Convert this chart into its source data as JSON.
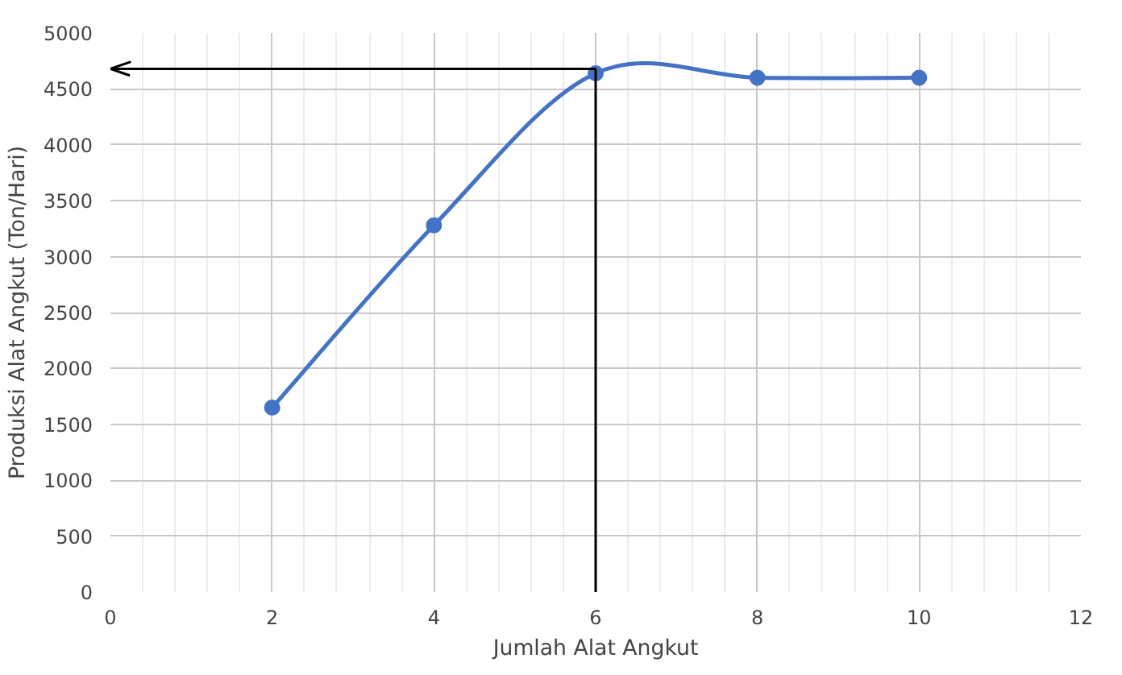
{
  "chart_data": {
    "type": "line",
    "xlabel": "Jumlah Alat Angkut",
    "ylabel": "Produksi Alat Angkut (Ton/Hari)",
    "x": [
      2,
      4,
      6,
      8,
      10
    ],
    "series": [
      {
        "color": "#4472c4",
        "values": [
          1650,
          3280,
          4640,
          4600,
          4600
        ]
      }
    ],
    "xlim": [
      0,
      12
    ],
    "xticks": [
      0,
      2,
      4,
      6,
      8,
      10,
      12
    ],
    "ylim": [
      0,
      5000
    ],
    "yticks": [
      0,
      500,
      1000,
      1500,
      2000,
      2500,
      3000,
      3500,
      4000,
      4500,
      5000
    ],
    "ref_lines": [
      {
        "axis": "x",
        "value": 6,
        "color": "#000000"
      },
      {
        "axis": "y",
        "value": 4680,
        "color": "#000000"
      }
    ],
    "grid": true,
    "marker": "circle",
    "line_style": "solid"
  }
}
